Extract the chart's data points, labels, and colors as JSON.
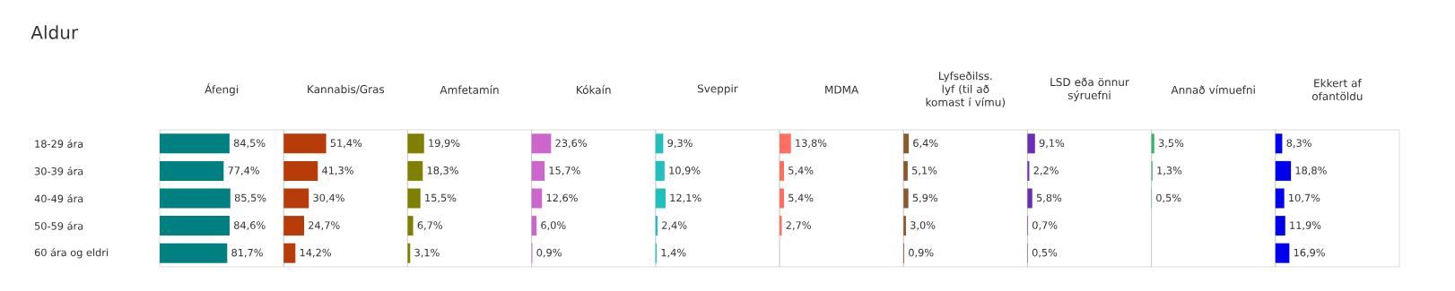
{
  "chart_data": [
    {
      "type": "bar",
      "orientation": "horizontal",
      "title": "Áfengi",
      "annotations": [
        "Aldur"
      ],
      "tick_labels": "y",
      "categories": [
        "18-29 ára",
        "30-39 ára",
        "40-49 ára",
        "50-59 ára",
        "60 ára og eldri"
      ],
      "color": "#008080",
      "xlim": [
        0,
        150
      ],
      "values": [
        84.5,
        77.4,
        85.5,
        84.6,
        81.7
      ],
      "value_labels": [
        "84,5%",
        "77,4%",
        "85,5%",
        "84,6%",
        "81,7%"
      ]
    },
    {
      "type": "bar",
      "orientation": "horizontal",
      "title": "Kannabis/Gras",
      "tick_labels": false,
      "color": "#b83c0a",
      "xlim": [
        0,
        150
      ],
      "values": [
        51.4,
        41.3,
        30.4,
        24.7,
        14.2
      ],
      "value_labels": [
        "51,4%",
        "41,3%",
        "30,4%",
        "24,7%",
        "14,2%"
      ]
    },
    {
      "type": "bar",
      "orientation": "horizontal",
      "title": "Amfetamín",
      "tick_labels": false,
      "color": "#808000",
      "xlim": [
        0,
        150
      ],
      "values": [
        19.9,
        18.3,
        15.5,
        6.7,
        3.1
      ],
      "value_labels": [
        "19,9%",
        "18,3%",
        "15,5%",
        "6,7%",
        "3,1%"
      ]
    },
    {
      "type": "bar",
      "orientation": "horizontal",
      "title": "Kókaín",
      "tick_labels": false,
      "color": "#cc66cc",
      "xlim": [
        0,
        150
      ],
      "values": [
        23.6,
        15.7,
        12.6,
        6.0,
        0.9
      ],
      "value_labels": [
        "23,6%",
        "15,7%",
        "12,6%",
        "6,0%",
        "0,9%"
      ]
    },
    {
      "type": "bar",
      "orientation": "horizontal",
      "title": "Sveppir",
      "tick_labels": false,
      "color": "#20c0c0",
      "xlim": [
        0,
        150
      ],
      "values": [
        9.3,
        10.9,
        12.1,
        2.4,
        1.4
      ],
      "value_labels": [
        "9,3%",
        "10,9%",
        "12,1%",
        "2,4%",
        "1,4%"
      ]
    },
    {
      "type": "bar",
      "orientation": "horizontal",
      "title": "MDMA",
      "tick_labels": false,
      "color": "#ff6f61",
      "xlim": [
        0,
        150
      ],
      "values": [
        13.8,
        5.4,
        5.4,
        2.7,
        null
      ],
      "value_labels": [
        "13,8%",
        "5,4%",
        "5,4%",
        "2,7%",
        null
      ]
    },
    {
      "type": "bar",
      "orientation": "horizontal",
      "title": "Lyfseðilss. lyf (til að komast í vímu)",
      "tick_labels": false,
      "color": "#8b5a2b",
      "xlim": [
        0,
        150
      ],
      "values": [
        6.4,
        5.1,
        5.9,
        3.0,
        0.9
      ],
      "value_labels": [
        "6,4%",
        "5,1%",
        "5,9%",
        "3,0%",
        "0,9%"
      ]
    },
    {
      "type": "bar",
      "orientation": "horizontal",
      "title": "LSD eða önnur sýruefni",
      "tick_labels": false,
      "color": "#6a2db5",
      "xlim": [
        0,
        150
      ],
      "values": [
        9.1,
        2.2,
        5.8,
        0.7,
        0.5
      ],
      "value_labels": [
        "9,1%",
        "2,2%",
        "5,8%",
        "0,7%",
        "0,5%"
      ]
    },
    {
      "type": "bar",
      "orientation": "horizontal",
      "title": "Annað vímuefni",
      "tick_labels": false,
      "color": "#3cb371",
      "xlim": [
        0,
        150
      ],
      "values": [
        3.5,
        1.3,
        0.5,
        null,
        null
      ],
      "value_labels": [
        "3,5%",
        "1,3%",
        "0,5%",
        null,
        null
      ]
    },
    {
      "type": "bar",
      "orientation": "horizontal",
      "title": "Ekkert af ofantöldu",
      "tick_labels": false,
      "color": "#0000ee",
      "xlim": [
        0,
        150
      ],
      "values": [
        8.3,
        18.8,
        10.7,
        11.9,
        16.9
      ],
      "value_labels": [
        "8,3%",
        "18,8%",
        "10,7%",
        "11,9%",
        "16,9%"
      ]
    }
  ]
}
